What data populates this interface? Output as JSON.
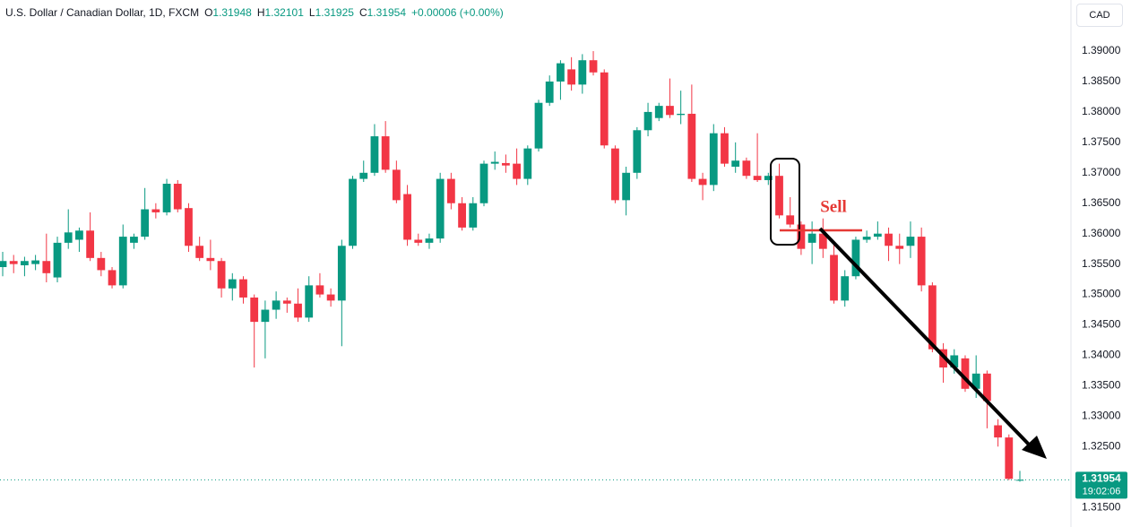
{
  "chart_data": {
    "type": "candlestick",
    "title": "U.S. Dollar / Canadian Dollar, 1D, FXCM",
    "quote_letters": [
      "O",
      "H",
      "L",
      "C"
    ],
    "quote": [
      1.31948,
      1.32101,
      1.31925,
      1.31954
    ],
    "change": "+0.00006 (+0.00%)",
    "currency": "CAD",
    "annotation": "Sell",
    "last_price": 1.31954,
    "countdown": "19:02:06",
    "up_color": "#089981",
    "down_color": "#f23645",
    "ylim": [
      1.3137,
      1.3984
    ],
    "yticks": [
      {
        "value": 1.315,
        "label": "1.31500"
      },
      {
        "value": 1.32,
        "label": "1.32000"
      },
      {
        "value": 1.325,
        "label": "1.32500"
      },
      {
        "value": 1.33,
        "label": "1.33000"
      },
      {
        "value": 1.335,
        "label": "1.33500"
      },
      {
        "value": 1.34,
        "label": "1.34000"
      },
      {
        "value": 1.345,
        "label": "1.34500"
      },
      {
        "value": 1.35,
        "label": "1.35000"
      },
      {
        "value": 1.355,
        "label": "1.35500"
      },
      {
        "value": 1.36,
        "label": "1.36000"
      },
      {
        "value": 1.365,
        "label": "1.36500"
      },
      {
        "value": 1.37,
        "label": "1.37000"
      },
      {
        "value": 1.375,
        "label": "1.37500"
      },
      {
        "value": 1.38,
        "label": "1.38000"
      },
      {
        "value": 1.385,
        "label": "1.38500"
      },
      {
        "value": 1.39,
        "label": "1.39000"
      }
    ],
    "ohlc": [
      [
        1.3545,
        1.357,
        1.353,
        1.3555
      ],
      [
        1.3555,
        1.3565,
        1.3535,
        1.355
      ],
      [
        1.3548,
        1.3562,
        1.353,
        1.3555
      ],
      [
        1.355,
        1.3565,
        1.354,
        1.3556
      ],
      [
        1.3555,
        1.36,
        1.352,
        1.3535
      ],
      [
        1.3528,
        1.3595,
        1.352,
        1.3585
      ],
      [
        1.3585,
        1.364,
        1.3575,
        1.3602
      ],
      [
        1.359,
        1.361,
        1.357,
        1.3605
      ],
      [
        1.3605,
        1.3635,
        1.3555,
        1.356
      ],
      [
        1.356,
        1.357,
        1.353,
        1.354
      ],
      [
        1.354,
        1.3545,
        1.351,
        1.3515
      ],
      [
        1.3515,
        1.3615,
        1.351,
        1.3595
      ],
      [
        1.3585,
        1.36,
        1.3575,
        1.3595
      ],
      [
        1.3595,
        1.3675,
        1.359,
        1.364
      ],
      [
        1.364,
        1.365,
        1.3625,
        1.3635
      ],
      [
        1.3635,
        1.369,
        1.363,
        1.3682
      ],
      [
        1.3682,
        1.3688,
        1.3635,
        1.364
      ],
      [
        1.3642,
        1.365,
        1.357,
        1.358
      ],
      [
        1.358,
        1.3595,
        1.3555,
        1.356
      ],
      [
        1.356,
        1.359,
        1.354,
        1.3555
      ],
      [
        1.3555,
        1.356,
        1.3495,
        1.351
      ],
      [
        1.351,
        1.3535,
        1.349,
        1.3525
      ],
      [
        1.3525,
        1.353,
        1.3485,
        1.3495
      ],
      [
        1.3495,
        1.35,
        1.338,
        1.3455
      ],
      [
        1.3455,
        1.349,
        1.3395,
        1.3475
      ],
      [
        1.3475,
        1.3505,
        1.346,
        1.349
      ],
      [
        1.349,
        1.3495,
        1.347,
        1.3485
      ],
      [
        1.3485,
        1.351,
        1.3455,
        1.3462
      ],
      [
        1.3462,
        1.353,
        1.3455,
        1.3515
      ],
      [
        1.3515,
        1.3535,
        1.3495,
        1.35
      ],
      [
        1.35,
        1.351,
        1.348,
        1.349
      ],
      [
        1.349,
        1.359,
        1.3415,
        1.358
      ],
      [
        1.358,
        1.3695,
        1.3575,
        1.369
      ],
      [
        1.369,
        1.372,
        1.3685,
        1.37
      ],
      [
        1.37,
        1.378,
        1.3695,
        1.376
      ],
      [
        1.376,
        1.3785,
        1.37,
        1.3705
      ],
      [
        1.3705,
        1.372,
        1.365,
        1.3655
      ],
      [
        1.3665,
        1.368,
        1.358,
        1.359
      ],
      [
        1.359,
        1.36,
        1.358,
        1.3585
      ],
      [
        1.3585,
        1.36,
        1.3575,
        1.3592
      ],
      [
        1.3592,
        1.37,
        1.3585,
        1.369
      ],
      [
        1.369,
        1.37,
        1.364,
        1.365
      ],
      [
        1.365,
        1.366,
        1.3605,
        1.361
      ],
      [
        1.361,
        1.366,
        1.3605,
        1.365
      ],
      [
        1.365,
        1.372,
        1.3645,
        1.3715
      ],
      [
        1.3715,
        1.3735,
        1.3705,
        1.3718
      ],
      [
        1.3716,
        1.373,
        1.37,
        1.3712
      ],
      [
        1.3715,
        1.374,
        1.368,
        1.369
      ],
      [
        1.369,
        1.3745,
        1.368,
        1.374
      ],
      [
        1.374,
        1.382,
        1.3735,
        1.3815
      ],
      [
        1.3815,
        1.386,
        1.381,
        1.385
      ],
      [
        1.385,
        1.3885,
        1.382,
        1.388
      ],
      [
        1.387,
        1.389,
        1.3835,
        1.3845
      ],
      [
        1.3845,
        1.3895,
        1.383,
        1.3885
      ],
      [
        1.3885,
        1.39,
        1.386,
        1.3865
      ],
      [
        1.3865,
        1.387,
        1.374,
        1.3745
      ],
      [
        1.374,
        1.3745,
        1.365,
        1.3655
      ],
      [
        1.3655,
        1.371,
        1.363,
        1.37
      ],
      [
        1.37,
        1.3775,
        1.369,
        1.377
      ],
      [
        1.377,
        1.3815,
        1.376,
        1.38
      ],
      [
        1.379,
        1.3815,
        1.3785,
        1.381
      ],
      [
        1.381,
        1.3855,
        1.379,
        1.3795
      ],
      [
        1.3795,
        1.3835,
        1.378,
        1.3797
      ],
      [
        1.3797,
        1.3845,
        1.3685,
        1.369
      ],
      [
        1.369,
        1.37,
        1.3655,
        1.368
      ],
      [
        1.368,
        1.378,
        1.367,
        1.3765
      ],
      [
        1.3765,
        1.3775,
        1.371,
        1.3715
      ],
      [
        1.371,
        1.375,
        1.37,
        1.372
      ],
      [
        1.372,
        1.3725,
        1.369,
        1.3695
      ],
      [
        1.3695,
        1.3765,
        1.3685,
        1.3688
      ],
      [
        1.3688,
        1.37,
        1.368,
        1.3695
      ],
      [
        1.3695,
        1.3715,
        1.3625,
        1.363
      ],
      [
        1.363,
        1.366,
        1.361,
        1.3615
      ],
      [
        1.3615,
        1.362,
        1.3565,
        1.3575
      ],
      [
        1.3585,
        1.362,
        1.355,
        1.36
      ],
      [
        1.36,
        1.3625,
        1.356,
        1.3575
      ],
      [
        1.3565,
        1.3585,
        1.3485,
        1.349
      ],
      [
        1.349,
        1.354,
        1.348,
        1.353
      ],
      [
        1.353,
        1.3595,
        1.3525,
        1.359
      ],
      [
        1.359,
        1.3605,
        1.3585,
        1.3595
      ],
      [
        1.3595,
        1.362,
        1.359,
        1.36
      ],
      [
        1.36,
        1.361,
        1.3555,
        1.358
      ],
      [
        1.358,
        1.36,
        1.355,
        1.3575
      ],
      [
        1.358,
        1.362,
        1.356,
        1.3595
      ],
      [
        1.3595,
        1.361,
        1.3505,
        1.3515
      ],
      [
        1.3515,
        1.352,
        1.3405,
        1.341
      ],
      [
        1.341,
        1.342,
        1.3355,
        1.338
      ],
      [
        1.338,
        1.341,
        1.337,
        1.34
      ],
      [
        1.3395,
        1.34,
        1.334,
        1.3345
      ],
      [
        1.3345,
        1.34,
        1.333,
        1.337
      ],
      [
        1.337,
        1.3375,
        1.328,
        1.3325
      ],
      [
        1.3285,
        1.3295,
        1.325,
        1.3265
      ],
      [
        1.3265,
        1.327,
        1.3195,
        1.3197
      ],
      [
        1.31948,
        1.32101,
        1.31925,
        1.31954
      ]
    ]
  }
}
